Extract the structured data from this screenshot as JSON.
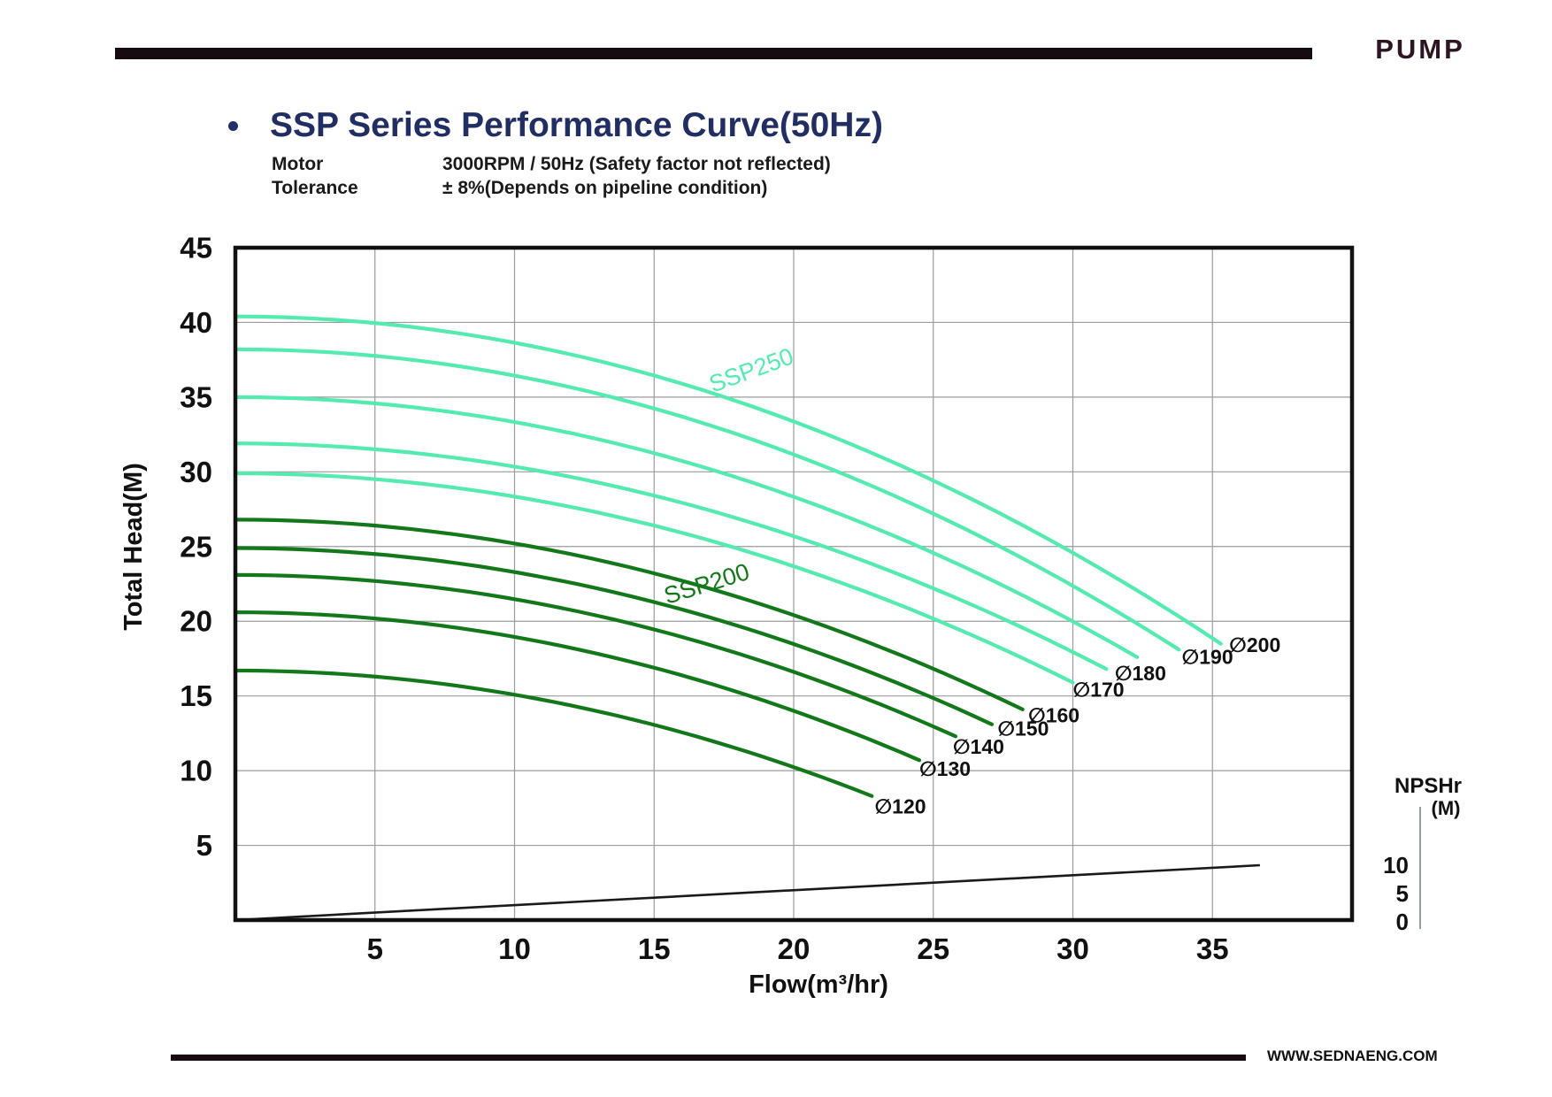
{
  "page": {
    "brand": "PUMP",
    "title": "SSP Series Performance Curve(50Hz)",
    "specs": [
      {
        "label": "Motor",
        "value": "3000RPM / 50Hz (Safety factor not reflected)"
      },
      {
        "label": "Tolerance",
        "value": "± 8%(Depends on pipeline condition)"
      }
    ],
    "website": "WWW.SEDNAENG.COM"
  },
  "chart_data": {
    "type": "line",
    "title": "SSP Series Performance Curve(50Hz)",
    "xlabel": "Flow(m³/hr)",
    "ylabel": "Total Head(M)",
    "xlim": [
      0,
      40
    ],
    "ylim": [
      0,
      45
    ],
    "x_ticks": [
      5,
      10,
      15,
      20,
      25,
      30,
      35
    ],
    "y_ticks": [
      5,
      10,
      15,
      20,
      25,
      30,
      35,
      40,
      45
    ],
    "grid": true,
    "grid_color": "#9b9b9b",
    "border_color": "#111111",
    "series_groups": [
      {
        "name": "SSP250",
        "color": "#55EAB0",
        "label_pos": {
          "q": 18.5,
          "h": 36.7,
          "angle": -20
        },
        "curves": [
          {
            "label": "∅200",
            "shutoff_head": 40.4,
            "end_flow": 35.3,
            "end_head": 18.5,
            "label_pos": {
              "q": 35.6,
              "h": 18.3
            }
          },
          {
            "label": "∅190",
            "shutoff_head": 38.2,
            "end_flow": 33.8,
            "end_head": 18.1,
            "label_pos": {
              "q": 33.9,
              "h": 17.5
            }
          },
          {
            "label": null,
            "shutoff_head": 35.0,
            "end_flow": 32.3,
            "end_head": 17.6,
            "label_pos": null
          },
          {
            "label": "∅180",
            "shutoff_head": 31.9,
            "end_flow": 31.2,
            "end_head": 16.8,
            "label_pos": {
              "q": 31.5,
              "h": 16.4
            }
          },
          {
            "label": "∅170",
            "shutoff_head": 29.9,
            "end_flow": 30.0,
            "end_head": 15.9,
            "label_pos": {
              "q": 30.0,
              "h": 15.3
            }
          }
        ]
      },
      {
        "name": "SSP200",
        "color": "#13781A",
        "label_pos": {
          "q": 16.9,
          "h": 22.4,
          "angle": -17
        },
        "curves": [
          {
            "label": "∅160",
            "shutoff_head": 26.8,
            "end_flow": 28.2,
            "end_head": 14.1,
            "label_pos": {
              "q": 28.4,
              "h": 13.6
            }
          },
          {
            "label": "∅150",
            "shutoff_head": 24.9,
            "end_flow": 27.1,
            "end_head": 13.1,
            "label_pos": {
              "q": 27.3,
              "h": 12.7
            }
          },
          {
            "label": "∅140",
            "shutoff_head": 23.1,
            "end_flow": 25.8,
            "end_head": 12.3,
            "label_pos": {
              "q": 25.7,
              "h": 11.5
            }
          },
          {
            "label": "∅130",
            "shutoff_head": 20.6,
            "end_flow": 24.5,
            "end_head": 10.7,
            "label_pos": {
              "q": 24.5,
              "h": 10.0
            }
          },
          {
            "label": "∅120",
            "shutoff_head": 16.7,
            "end_flow": 22.8,
            "end_head": 8.3,
            "label_pos": {
              "q": 22.9,
              "h": 7.5
            }
          }
        ]
      }
    ],
    "npshr": {
      "title": "NPSHr",
      "unit": "(M)",
      "ticks": [
        10,
        5,
        0
      ],
      "line_start": {
        "q": 0,
        "value": 0
      },
      "line_end": {
        "q": 36.7,
        "value": 10
      }
    }
  }
}
